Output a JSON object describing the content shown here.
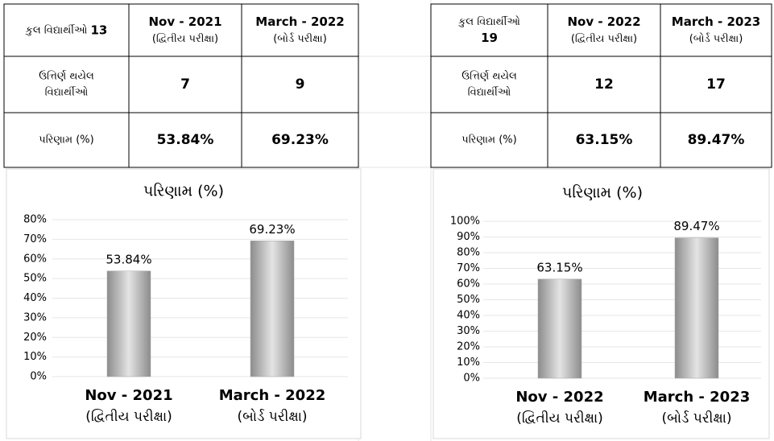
{
  "tables": [
    {
      "total_label": "કુલ વિદ્યાર્થીઓ",
      "total": "13",
      "columns": [
        [
          "Nov - 2021",
          "(દ્વિતીય પરીક્ષા)"
        ],
        [
          "March - 2022",
          "(બોર્ડ પરીક્ષા)"
        ]
      ],
      "rows": [
        {
          "label": [
            "ઉત્તિર્ણ થયેલ",
            "વિદ્યાર્થીઓ"
          ],
          "cells": [
            "7",
            "9"
          ]
        },
        {
          "label": [
            "પરિણામ (%)"
          ],
          "cells": [
            "53.84%",
            "69.23%"
          ]
        }
      ]
    },
    {
      "total_label": "કુલ વિદ્યાર્થીઓ",
      "total": "19",
      "columns": [
        [
          "Nov - 2022",
          "(દ્વિતીય પરીક્ષા)"
        ],
        [
          "March - 2023",
          "(બોર્ડ પરીક્ષા)"
        ]
      ],
      "rows": [
        {
          "label": [
            "ઉત્તિર્ણ થયેલ",
            "વિદ્યાર્થીઓ"
          ],
          "cells": [
            "12",
            "17"
          ]
        },
        {
          "label": [
            "પરિણામ (%)"
          ],
          "cells": [
            "63.15%",
            "89.47%"
          ]
        }
      ]
    }
  ],
  "chart_data": [
    {
      "type": "bar",
      "title": "પરિણામ (%)",
      "categories": [
        [
          "Nov - 2021",
          "(દ્વિતીય પરીક્ષા)"
        ],
        [
          "March - 2022",
          "(બોર્ડ પરીક્ષા)"
        ]
      ],
      "values": [
        53.84,
        69.23
      ],
      "value_labels": [
        "53.84%",
        "69.23%"
      ],
      "ylim": [
        0,
        80
      ],
      "yticks": [
        {
          "value": 0,
          "label": "0%"
        },
        {
          "value": 10,
          "label": "10%"
        },
        {
          "value": 20,
          "label": "20%"
        },
        {
          "value": 30,
          "label": "30%"
        },
        {
          "value": 40,
          "label": "40%"
        },
        {
          "value": 50,
          "label": "50%"
        },
        {
          "value": 60,
          "label": "60%"
        },
        {
          "value": 70,
          "label": "70%"
        },
        {
          "value": 80,
          "label": "80%"
        }
      ],
      "grid": true,
      "color": "#a6a6a6"
    },
    {
      "type": "bar",
      "title": "પરિણામ (%)",
      "categories": [
        [
          "Nov - 2022",
          "(દ્વિતીય પરીક્ષા)"
        ],
        [
          "March - 2023",
          "(બોર્ડ પરીક્ષા)"
        ]
      ],
      "values": [
        63.15,
        89.47
      ],
      "value_labels": [
        "63.15%",
        "89.47%"
      ],
      "ylim": [
        0,
        100
      ],
      "yticks": [
        {
          "value": 0,
          "label": "0%"
        },
        {
          "value": 10,
          "label": "10%"
        },
        {
          "value": 20,
          "label": "20%"
        },
        {
          "value": 30,
          "label": "30%"
        },
        {
          "value": 40,
          "label": "40%"
        },
        {
          "value": 50,
          "label": "50%"
        },
        {
          "value": 60,
          "label": "60%"
        },
        {
          "value": 70,
          "label": "70%"
        },
        {
          "value": 80,
          "label": "80%"
        },
        {
          "value": 90,
          "label": "90%"
        },
        {
          "value": 100,
          "label": "100%"
        }
      ],
      "grid": true,
      "color": "#a6a6a6"
    }
  ]
}
